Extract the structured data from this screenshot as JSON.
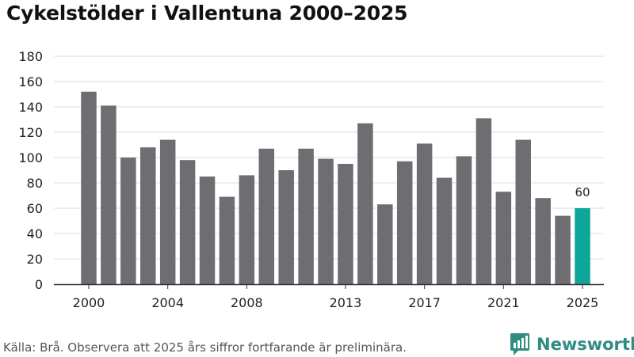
{
  "title": "Cykelstölder i Vallentuna 2000–2025",
  "source": "Källa: Brå. Observera att 2025 års siffror fortfarande är preliminära.",
  "brand": {
    "name": "Newsworthy",
    "icon": "newsworthy-logo-icon",
    "color": "#2f8d81"
  },
  "colors": {
    "bar": "#6e6d72",
    "highlight": "#0ea59b",
    "grid": "#dddddd",
    "axis": "#333333"
  },
  "chart_data": {
    "type": "bar",
    "categories": [
      "2000",
      "2001",
      "2002",
      "2003",
      "2004",
      "2005",
      "2006",
      "2007",
      "2008",
      "2009",
      "2010",
      "2011",
      "2012",
      "2013",
      "2014",
      "2015",
      "2016",
      "2017",
      "2018",
      "2019",
      "2020",
      "2021",
      "2022",
      "2023",
      "2024",
      "2025"
    ],
    "values": [
      152,
      141,
      100,
      108,
      114,
      98,
      85,
      69,
      86,
      107,
      90,
      107,
      99,
      95,
      127,
      63,
      97,
      111,
      84,
      101,
      131,
      73,
      114,
      68,
      54,
      60
    ],
    "x_tick_labels": [
      "2000",
      "2004",
      "2008",
      "2013",
      "2017",
      "2021",
      "2025"
    ],
    "y_ticks": [
      0,
      20,
      40,
      60,
      80,
      100,
      120,
      140,
      160,
      180
    ],
    "ylim": [
      0,
      180
    ],
    "highlight_category": "2025",
    "data_labels": [
      {
        "category": "2025",
        "text": "60"
      }
    ],
    "grid": true,
    "legend": "none"
  }
}
